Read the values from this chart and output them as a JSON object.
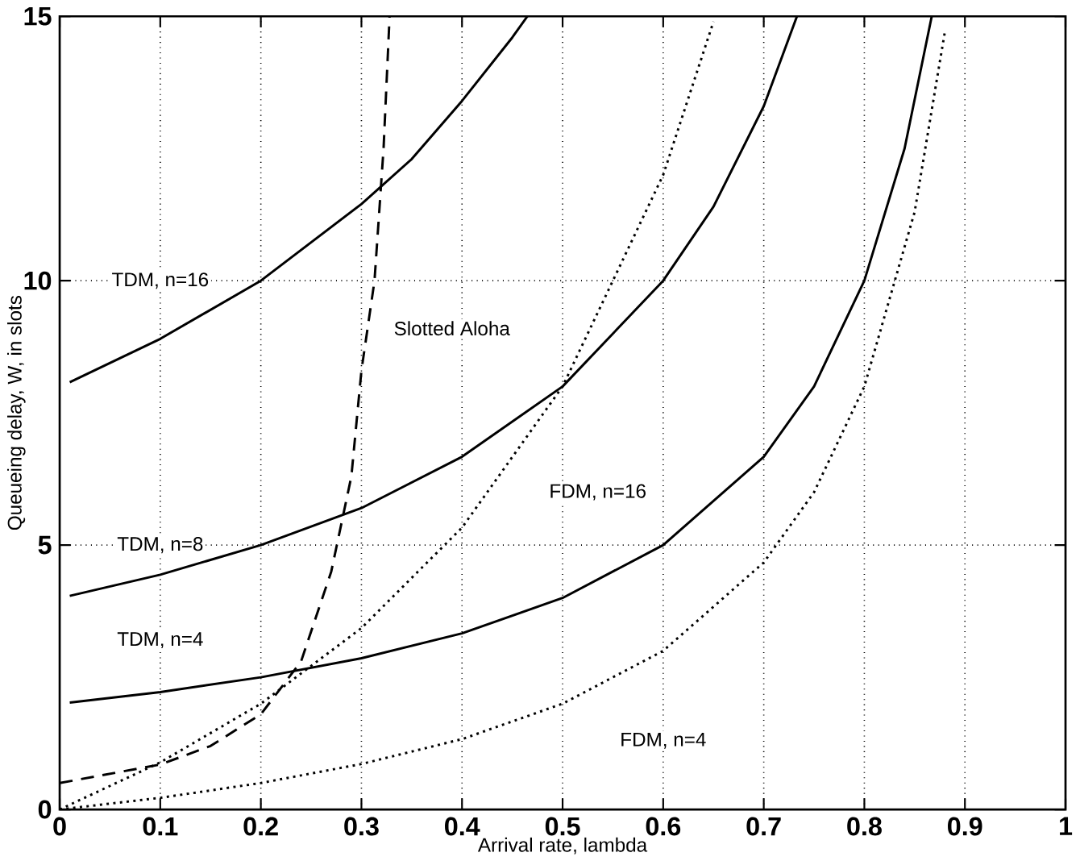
{
  "chart_data": {
    "type": "line",
    "xlabel": "Arrival rate, lambda",
    "ylabel": "Queueing delay, W, in slots",
    "xlim": [
      0,
      1
    ],
    "ylim": [
      0,
      15
    ],
    "xticks": [
      0,
      0.1,
      0.2,
      0.3,
      0.4,
      0.5,
      0.6,
      0.7,
      0.8,
      0.9,
      1
    ],
    "yticks": [
      0,
      5,
      10,
      15
    ],
    "grid": true,
    "legend": false,
    "marker": "none",
    "series": [
      {
        "name": "TDM, n=16",
        "color": "#000000",
        "line_style": "solid",
        "x": [
          0.01,
          0.1,
          0.2,
          0.3,
          0.35,
          0.4,
          0.45,
          0.465
        ],
        "values": [
          8.08,
          8.9,
          10,
          11.45,
          12.3,
          13.4,
          14.6,
          15
        ]
      },
      {
        "name": "TDM, n=8",
        "color": "#000000",
        "line_style": "solid",
        "x": [
          0.01,
          0.1,
          0.2,
          0.3,
          0.4,
          0.5,
          0.6,
          0.65,
          0.7,
          0.733
        ],
        "values": [
          4.04,
          4.44,
          5,
          5.7,
          6.67,
          8,
          10,
          11.4,
          13.3,
          15
        ]
      },
      {
        "name": "TDM, n=4",
        "color": "#000000",
        "line_style": "solid",
        "x": [
          0.01,
          0.1,
          0.2,
          0.3,
          0.4,
          0.5,
          0.6,
          0.7,
          0.75,
          0.8,
          0.84,
          0.867
        ],
        "values": [
          2.02,
          2.22,
          2.5,
          2.86,
          3.33,
          4,
          5,
          6.67,
          8,
          10,
          12.5,
          15
        ]
      },
      {
        "name": "FDM, n=16",
        "color": "#000000",
        "line_style": "dotted",
        "x": [
          0,
          0.1,
          0.2,
          0.3,
          0.4,
          0.5,
          0.6,
          0.65
        ],
        "values": [
          0,
          0.89,
          2,
          3.43,
          5.33,
          8,
          12,
          14.9
        ]
      },
      {
        "name": "FDM, n=4",
        "color": "#000000",
        "line_style": "dotted",
        "x": [
          0,
          0.1,
          0.2,
          0.3,
          0.4,
          0.5,
          0.6,
          0.7,
          0.75,
          0.8,
          0.85,
          0.88
        ],
        "values": [
          0,
          0.22,
          0.5,
          0.86,
          1.33,
          2,
          3,
          4.67,
          6,
          8,
          11.3,
          14.7
        ]
      },
      {
        "name": "Slotted Aloha",
        "color": "#000000",
        "line_style": "dashed",
        "x": [
          0,
          0.1,
          0.15,
          0.2,
          0.24,
          0.27,
          0.29,
          0.3,
          0.313,
          0.322,
          0.328
        ],
        "values": [
          0.5,
          0.85,
          1.2,
          1.8,
          2.8,
          4.5,
          6.3,
          8.3,
          10,
          12.5,
          15
        ]
      }
    ]
  }
}
